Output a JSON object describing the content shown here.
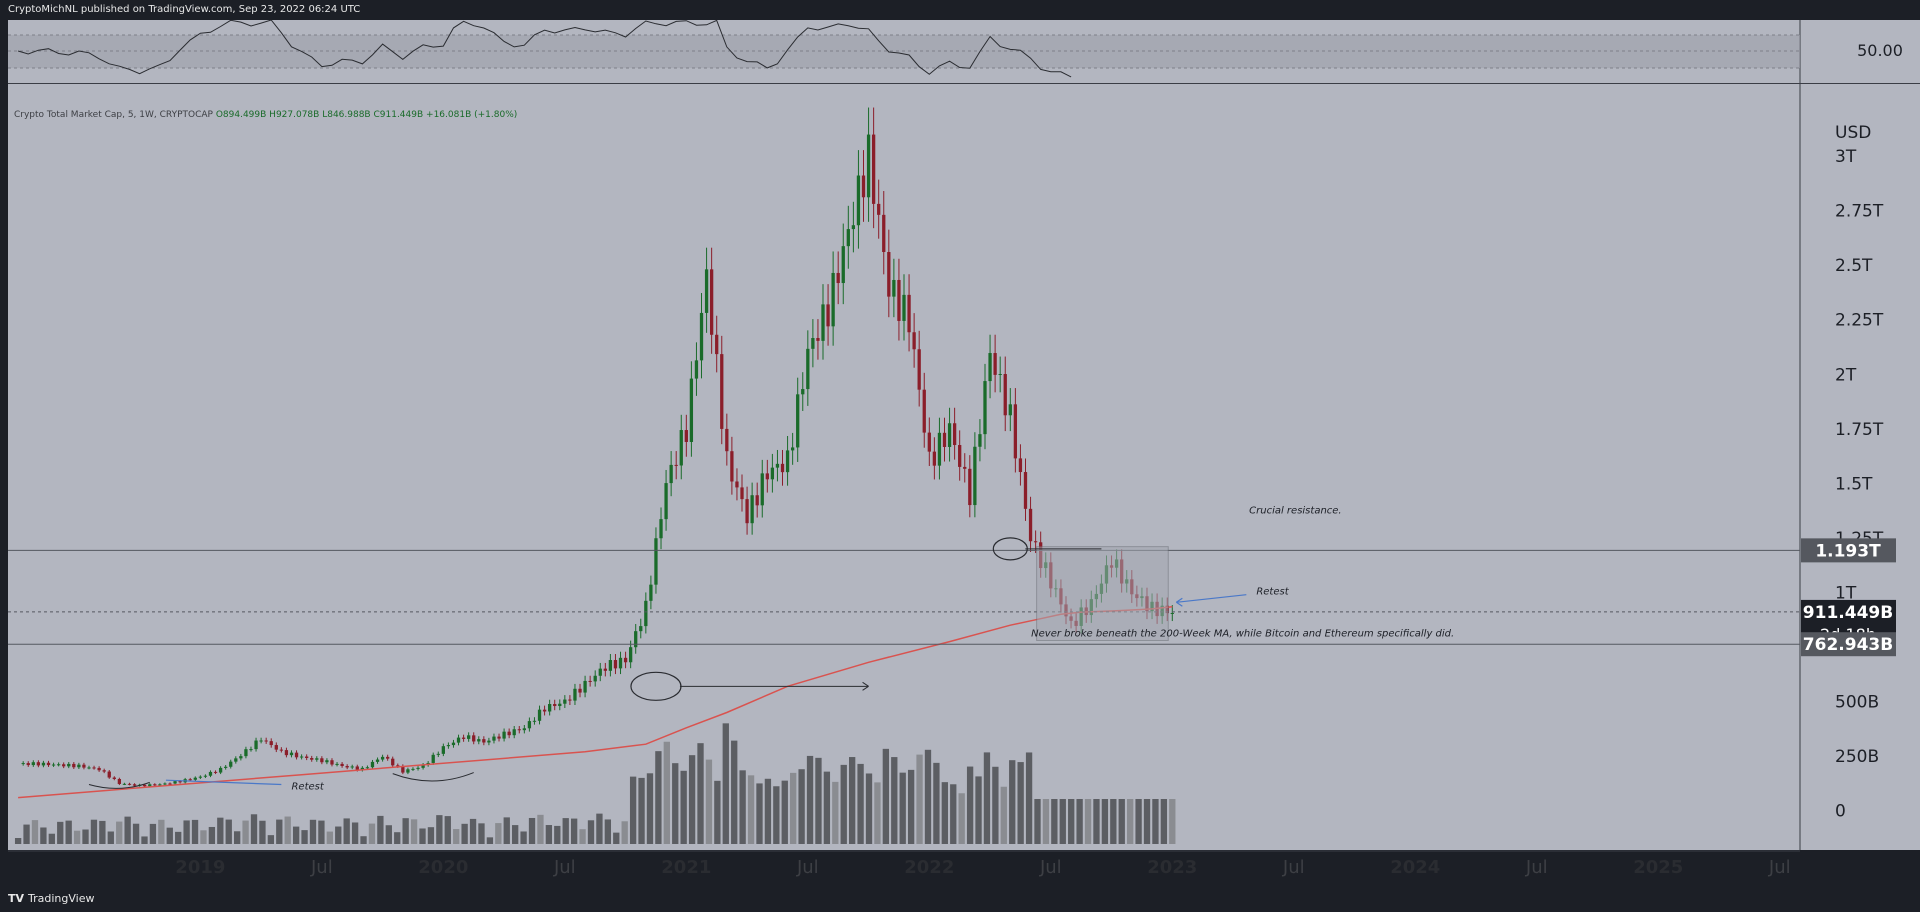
{
  "header": {
    "text": "CryptoMichNL published on TradingView.com, Sep 23, 2022 06:24 UTC"
  },
  "footer": {
    "logo": "TV",
    "brand": "TradingView"
  },
  "colors": {
    "background": "#b3b6c0",
    "panel_border": "#3a3d45",
    "bull": "#1a6b2a",
    "bear": "#8b1e2a",
    "ma": "#d9534f",
    "volume": "#5c5e63",
    "label_bg": "#55585f",
    "annotation_arrow": "#4a78c8"
  },
  "chart_data": {
    "type": "candlestick",
    "title": "Crypto Total Market Cap, 5, 1W, CRYPTOCAP",
    "ohlc_legend": {
      "o": "O894.499B",
      "h": "H927.078B",
      "l": "L846.988B",
      "c": "C911.449B",
      "chg": "+16.081B (+1.80%)"
    },
    "y_unit": "USD",
    "y_ticks": [
      "0",
      "250B",
      "500B",
      "1T",
      "1.25T",
      "1.5T",
      "1.75T",
      "2T",
      "2.25T",
      "2.5T",
      "2.75T",
      "3T"
    ],
    "y_tick_values": [
      0,
      250,
      500,
      1000,
      1250,
      1500,
      1750,
      2000,
      2250,
      2500,
      2750,
      3000
    ],
    "ylim_billions": [
      -180,
      3330
    ],
    "x_ticks": [
      "2019",
      "Jul",
      "2020",
      "Jul",
      "2021",
      "Jul",
      "2022",
      "Jul",
      "2023",
      "Jul",
      "2024",
      "Jul",
      "2025",
      "Jul"
    ],
    "x_tick_months": [
      9,
      15,
      21,
      27,
      33,
      39,
      45,
      51,
      57,
      63,
      69,
      75,
      81,
      87
    ],
    "xlim_months": [
      -0.5,
      88
    ],
    "price_months": [
      0,
      1,
      2,
      3,
      4,
      5,
      6,
      7,
      8,
      9,
      10,
      11,
      12,
      13,
      14,
      15,
      16,
      17,
      18,
      19,
      20,
      21,
      22,
      23,
      24,
      25,
      26,
      27,
      28,
      29,
      30,
      31,
      32,
      33,
      34,
      35,
      36,
      37,
      38,
      39,
      40,
      41,
      42,
      43,
      44,
      45,
      46,
      47,
      48,
      49,
      50,
      51,
      52,
      53,
      54,
      55,
      56,
      57
    ],
    "price_billions": [
      215,
      215,
      210,
      205,
      190,
      125,
      115,
      120,
      135,
      155,
      190,
      255,
      330,
      270,
      245,
      230,
      205,
      190,
      250,
      180,
      205,
      290,
      340,
      315,
      350,
      380,
      470,
      500,
      580,
      660,
      690,
      930,
      1500,
      1750,
      2450,
      1600,
      1350,
      1550,
      1600,
      2100,
      2300,
      2650,
      3000,
      2400,
      2250,
      1600,
      1750,
      1450,
      2100,
      1800,
      1250,
      1050,
      850,
      950,
      1150,
      1000,
      925,
      911
    ],
    "ma_label": "200-Week MA",
    "ma_months": [
      0,
      14,
      28,
      31,
      33,
      35,
      38,
      42,
      46,
      49,
      50.5,
      51.5,
      52.5,
      54,
      56,
      57
    ],
    "ma_billions": [
      60,
      165,
      270,
      305,
      380,
      450,
      570,
      680,
      775,
      850,
      880,
      900,
      910,
      915,
      925,
      935
    ],
    "volume_bars": 138,
    "price_labels": [
      {
        "text": "1.193T",
        "value_billions": 1193
      },
      {
        "text": "911.449B",
        "sub": "2d 18h",
        "value_billions": 911
      },
      {
        "text": "762.943B",
        "value_billions": 763
      }
    ],
    "oscillator": {
      "label": "50.00"
    },
    "annotations": [
      {
        "text": "Crucial resistance."
      },
      {
        "text": "Retest"
      },
      {
        "text": "Never broke beneath the 200-Week MA, while Bitcoin and Ethereum specifically did."
      },
      {
        "text": "Retest"
      }
    ]
  }
}
